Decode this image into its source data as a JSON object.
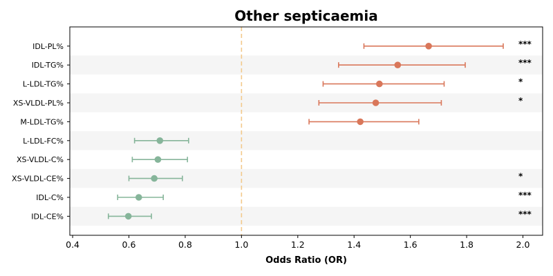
{
  "chart_data": {
    "type": "scatter",
    "subtype": "forest-plot",
    "title": "Other septicaemia",
    "xlabel": "Odds Ratio (OR)",
    "ylabel": "",
    "xlim": [
      0.39,
      2.07
    ],
    "xticks": [
      "0.4",
      "0.6",
      "0.8",
      "1.0",
      "1.2",
      "1.4",
      "1.6",
      "1.8",
      "2.0"
    ],
    "reference_line": 1.0,
    "grid": false,
    "colors": {
      "positive": "#d9775a",
      "negative": "#86b59a",
      "reference": "#f3c98b",
      "band": "#f5f5f5"
    },
    "rows": [
      {
        "label": "IDL-PL%",
        "or": 1.665,
        "lo": 1.435,
        "hi": 1.93,
        "sig": "***"
      },
      {
        "label": "IDL-TG%",
        "or": 1.555,
        "lo": 1.345,
        "hi": 1.795,
        "sig": "***"
      },
      {
        "label": "L-LDL-TG%",
        "or": 1.49,
        "lo": 1.29,
        "hi": 1.72,
        "sig": "*"
      },
      {
        "label": "XS-VLDL-PL%",
        "or": 1.477,
        "lo": 1.275,
        "hi": 1.71,
        "sig": "*"
      },
      {
        "label": "M-LDL-TG%",
        "or": 1.422,
        "lo": 1.24,
        "hi": 1.63,
        "sig": ""
      },
      {
        "label": "L-LDL-FC%",
        "or": 0.71,
        "lo": 0.62,
        "hi": 0.812,
        "sig": ""
      },
      {
        "label": "XS-VLDL-C%",
        "or": 0.703,
        "lo": 0.612,
        "hi": 0.808,
        "sig": ""
      },
      {
        "label": "XS-VLDL-CE%",
        "or": 0.69,
        "lo": 0.6,
        "hi": 0.79,
        "sig": "*"
      },
      {
        "label": "IDL-C%",
        "or": 0.635,
        "lo": 0.56,
        "hi": 0.722,
        "sig": "***"
      },
      {
        "label": "IDL-CE%",
        "or": 0.598,
        "lo": 0.527,
        "hi": 0.68,
        "sig": "***"
      }
    ]
  }
}
